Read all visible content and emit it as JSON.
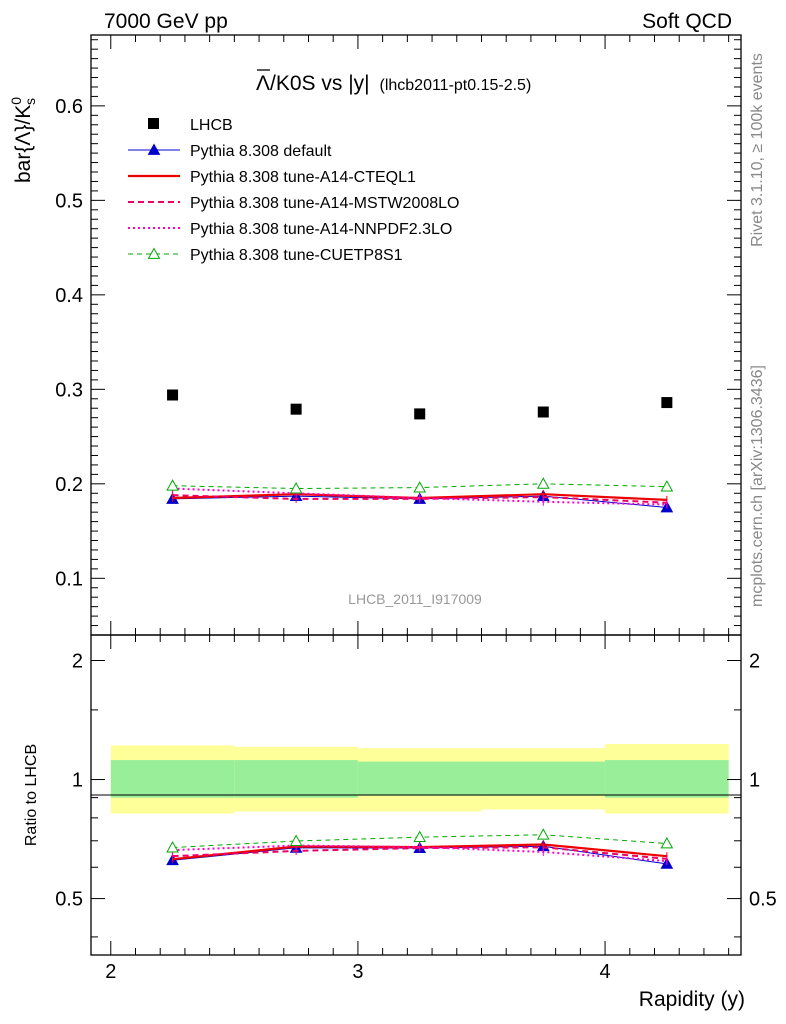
{
  "header": {
    "left": "7000 GeV pp",
    "right": "Soft QCD"
  },
  "side_labels": {
    "rivet": "Rivet 3.1.10, ≥ 100k events",
    "mcplots": "mcplots.cern.ch [arXiv:1306.3436]"
  },
  "watermark": "LHCB_2011_I917009",
  "chart_data": {
    "type": "scatter",
    "title": {
      "main": "Λ/K0S vs |y|",
      "sub": "(lhcb2011-pt0.15-2.5)"
    },
    "ylabel": "bar{Λ}/K⁰s",
    "ylabel_parts": {
      "main": "bar{Λ}/K",
      "sup": "0",
      "sub": "s"
    },
    "xlabel": "Rapidity (y)",
    "ratio_ylabel": "Ratio to LHCB",
    "xlim": [
      1.92,
      4.55
    ],
    "ylim": [
      0.04,
      0.675
    ],
    "ratio_ylim": [
      0.36,
      2.32
    ],
    "ratio_log_y": true,
    "x_ticks": [
      "2",
      "3",
      "4"
    ],
    "y_ticks": [
      "0.1",
      "0.2",
      "0.3",
      "0.4",
      "0.5",
      "0.6"
    ],
    "ratio_y_ticks": [
      "0.5",
      "1",
      "2"
    ],
    "x": [
      2.25,
      2.75,
      3.25,
      3.75,
      4.25
    ],
    "x_bins": [
      [
        2.0,
        2.5
      ],
      [
        2.5,
        3.0
      ],
      [
        3.0,
        3.5
      ],
      [
        3.5,
        4.0
      ],
      [
        4.0,
        4.5
      ]
    ],
    "data": {
      "name": "LHCB",
      "values": [
        0.294,
        0.279,
        0.274,
        0.276,
        0.286
      ],
      "ratio_band_inner": [
        [
          0.9,
          1.12
        ],
        [
          0.9,
          1.12
        ],
        [
          0.91,
          1.11
        ],
        [
          0.91,
          1.11
        ],
        [
          0.9,
          1.12
        ]
      ],
      "ratio_band_outer": [
        [
          0.82,
          1.22
        ],
        [
          0.83,
          1.21
        ],
        [
          0.83,
          1.2
        ],
        [
          0.84,
          1.2
        ],
        [
          0.82,
          1.23
        ]
      ]
    },
    "series": [
      {
        "name": "Pythia 8.308 default",
        "color": "#0000cc",
        "dash": "",
        "width": 1,
        "marker": "triangle-filled",
        "values": [
          0.184,
          0.187,
          0.184,
          0.187,
          0.175
        ],
        "ratio": [
          0.625,
          0.672,
          0.671,
          0.678,
          0.612
        ]
      },
      {
        "name": "Pythia 8.308 tune-A14-CTEQL1",
        "color": "#ee0000",
        "dash": "",
        "width": 2.2,
        "marker": "none",
        "values": [
          0.185,
          0.189,
          0.185,
          0.189,
          0.183
        ],
        "ratio": [
          0.629,
          0.677,
          0.675,
          0.685,
          0.64
        ]
      },
      {
        "name": "Pythia 8.308 tune-A14-MSTW2008LO",
        "color": "#ee0066",
        "dash": "6,4",
        "width": 2,
        "marker": "none",
        "values": [
          0.188,
          0.184,
          0.184,
          0.186,
          0.18
        ],
        "ratio": [
          0.64,
          0.66,
          0.671,
          0.674,
          0.63
        ]
      },
      {
        "name": "Pythia 8.308 tune-A14-NNPDF2.3LO",
        "color": "#ff00cc",
        "dash": "2,3",
        "width": 2,
        "marker": "none",
        "values": [
          0.195,
          0.19,
          0.185,
          0.181,
          0.178
        ],
        "ratio": [
          0.663,
          0.681,
          0.675,
          0.656,
          0.622
        ]
      },
      {
        "name": "Pythia 8.308 tune-CUETP8S1",
        "color": "#00aa00",
        "dash": "5,4",
        "width": 1,
        "marker": "triangle-open",
        "values": [
          0.198,
          0.195,
          0.196,
          0.2,
          0.197
        ],
        "ratio": [
          0.673,
          0.699,
          0.715,
          0.725,
          0.689
        ]
      }
    ],
    "legend_position": "top-left"
  },
  "colors": {
    "band_inner": "#99ee99",
    "band_outer": "#ffff99",
    "text": "#000000",
    "side_text": "#888888"
  }
}
